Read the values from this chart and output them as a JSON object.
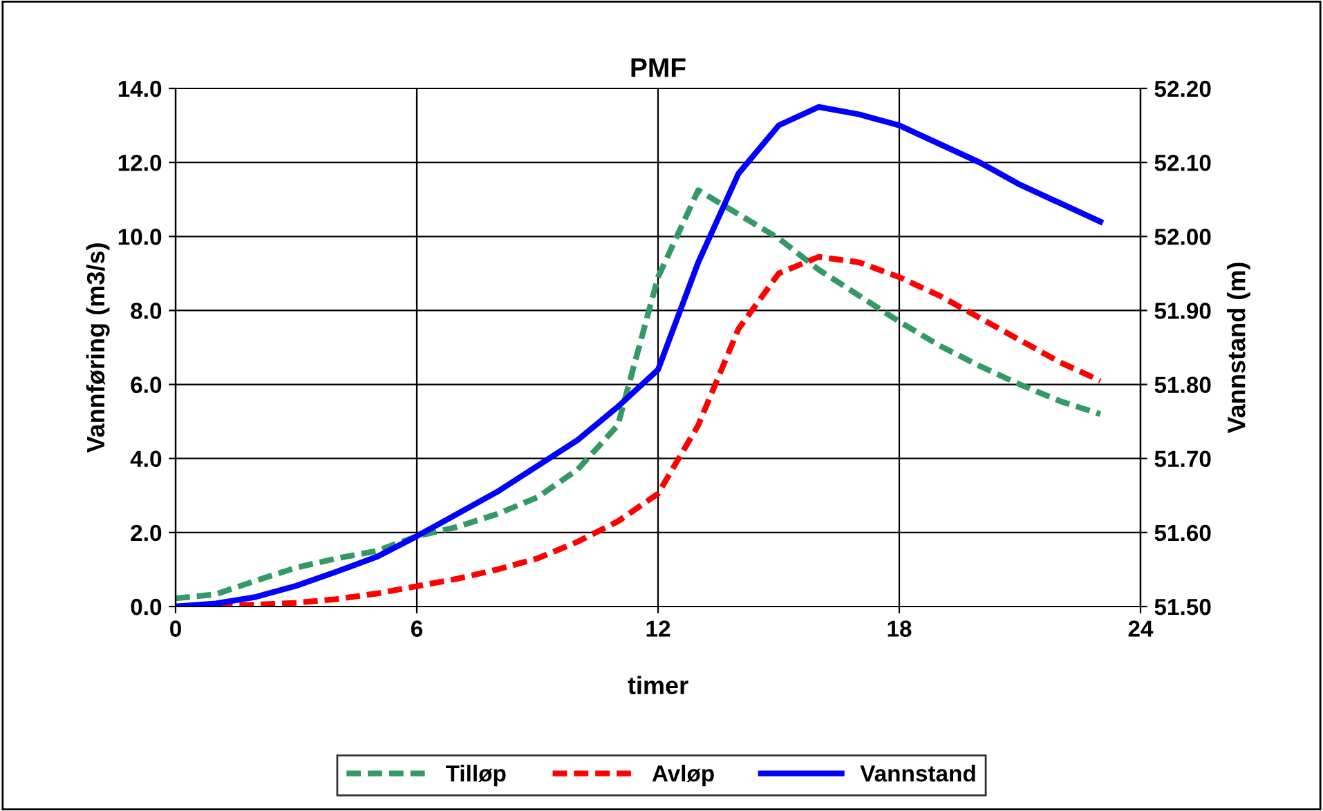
{
  "chart_data": {
    "type": "line",
    "title": "PMF",
    "xlabel": "timer",
    "ylabel": "Vannføring (m3/s)",
    "y2label": "Vannstand (m)",
    "x": [
      0,
      1,
      2,
      3,
      4,
      5,
      6,
      7,
      8,
      9,
      10,
      11,
      12,
      13,
      14,
      15,
      16,
      17,
      18,
      19,
      20,
      21,
      22,
      23
    ],
    "series": [
      {
        "name": "Tilløp",
        "color": "#339966",
        "line_style": "dashed",
        "values": [
          0.22,
          0.33,
          0.7,
          1.05,
          1.3,
          1.5,
          1.9,
          2.15,
          2.5,
          2.95,
          3.7,
          4.9,
          8.9,
          11.25,
          10.6,
          9.95,
          9.1,
          8.4,
          7.7,
          7.05,
          6.5,
          6.0,
          5.55,
          5.2
        ]
      },
      {
        "name": "Avløp",
        "color": "#ff0000",
        "line_style": "dashed",
        "values": [
          0,
          0.02,
          0.05,
          0.1,
          0.2,
          0.35,
          0.55,
          0.75,
          1.0,
          1.3,
          1.75,
          2.3,
          3.05,
          4.9,
          7.5,
          9.0,
          9.45,
          9.3,
          8.9,
          8.4,
          7.8,
          7.2,
          6.6,
          6.1
        ]
      },
      {
        "name": "Vannstand",
        "color": "#0000ff",
        "line_style": "solid",
        "axis": "y2",
        "values": [
          51.5,
          51.504,
          51.513,
          51.528,
          51.547,
          51.567,
          51.595,
          51.625,
          51.655,
          51.69,
          51.725,
          51.77,
          51.82,
          51.965,
          52.085,
          52.15,
          52.175,
          52.165,
          52.15,
          52.125,
          52.1,
          52.07,
          52.045,
          52.02
        ]
      }
    ],
    "xlim": [
      0,
      24
    ],
    "xticks": [
      0,
      6,
      12,
      18,
      24
    ],
    "ylim": [
      0,
      14
    ],
    "yticks": [
      {
        "value": 0,
        "label": "0.0"
      },
      {
        "value": 2,
        "label": "2.0"
      },
      {
        "value": 4,
        "label": "4.0"
      },
      {
        "value": 6,
        "label": "6.0"
      },
      {
        "value": 8,
        "label": "8.0"
      },
      {
        "value": 10,
        "label": "10.0"
      },
      {
        "value": 12,
        "label": "12.0"
      },
      {
        "value": 14,
        "label": "14.0"
      }
    ],
    "y2lim": [
      51.5,
      52.2
    ],
    "y2ticks": [
      {
        "value": 51.5,
        "label": "51.50"
      },
      {
        "value": 51.6,
        "label": "51.60"
      },
      {
        "value": 51.7,
        "label": "51.70"
      },
      {
        "value": 51.8,
        "label": "51.80"
      },
      {
        "value": 51.9,
        "label": "51.90"
      },
      {
        "value": 52.0,
        "label": "52.00"
      },
      {
        "value": 52.1,
        "label": "52.10"
      },
      {
        "value": 52.2,
        "label": "52.20"
      }
    ],
    "grid": true,
    "legend": "bottom",
    "marker": "none"
  }
}
